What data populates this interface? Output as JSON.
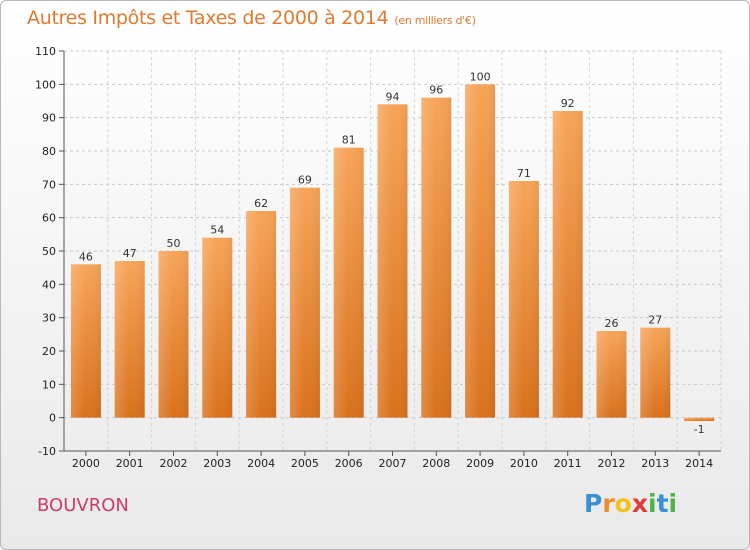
{
  "header": {
    "title": "Autres Impôts et Taxes de 2000 à 2014",
    "unit": "(en milliers d'€)"
  },
  "footer": {
    "commune": "BOUVRON",
    "logo_letters": [
      "P",
      "r",
      "o",
      "x",
      "i",
      "t",
      "i"
    ],
    "logo_colors": [
      "#3a8fd6",
      "#f08a2c",
      "#f4c21b",
      "#e23a3a",
      "#4fb24a",
      "#3a8fd6",
      "#4fb24a"
    ]
  },
  "chart_data": {
    "type": "bar",
    "title": "Autres Impôts et Taxes de 2000 à 2014",
    "subtitle": "(en milliers d'€)",
    "categories": [
      "2000",
      "2001",
      "2002",
      "2003",
      "2004",
      "2005",
      "2006",
      "2007",
      "2008",
      "2009",
      "2010",
      "2011",
      "2012",
      "2013",
      "2014"
    ],
    "values": [
      46,
      47,
      50,
      54,
      62,
      69,
      81,
      94,
      96,
      100,
      71,
      92,
      26,
      27,
      -1
    ],
    "ylim": [
      -10,
      110
    ],
    "yticks": [
      -10,
      0,
      10,
      20,
      30,
      40,
      50,
      60,
      70,
      80,
      90,
      100,
      110
    ],
    "grid": true,
    "bar_color": "#f08a2c",
    "legend": false
  }
}
